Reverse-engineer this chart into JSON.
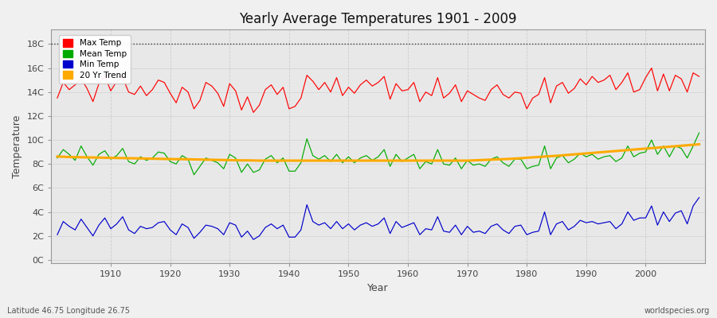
{
  "title": "Yearly Average Temperatures 1901 - 2009",
  "xlabel": "Year",
  "ylabel": "Temperature",
  "subtitle_left": "Latitude 46.75 Longitude 26.75",
  "subtitle_right": "worldspecies.org",
  "years_start": 1901,
  "years_end": 2009,
  "yticks": [
    0,
    2,
    4,
    6,
    8,
    10,
    12,
    14,
    16,
    18
  ],
  "ytick_labels": [
    "0C",
    "2C",
    "4C",
    "6C",
    "8C",
    "10C",
    "12C",
    "14C",
    "16C",
    "18C"
  ],
  "ylim": [
    -0.3,
    19.2
  ],
  "xlim_left": 1900,
  "xlim_right": 2010,
  "color_max": "#ff0000",
  "color_mean": "#00aa00",
  "color_min": "#0000cc",
  "color_trend": "#ffaa00",
  "fig_bg": "#f0f0f0",
  "plot_bg": "#e8e8e8",
  "grid_color": "#cccccc",
  "legend_labels": [
    "Max Temp",
    "Mean Temp",
    "Min Temp",
    "20 Yr Trend"
  ],
  "max_temps": [
    13.5,
    14.8,
    14.2,
    14.6,
    15.1,
    14.3,
    13.2,
    14.7,
    15.3,
    14.1,
    14.9,
    15.2,
    14.0,
    13.8,
    14.5,
    13.7,
    14.2,
    15.0,
    14.8,
    13.9,
    13.1,
    14.4,
    14.0,
    12.6,
    13.3,
    14.8,
    14.5,
    13.9,
    12.8,
    14.7,
    14.1,
    12.5,
    13.6,
    12.3,
    12.9,
    14.2,
    14.6,
    13.8,
    14.4,
    12.6,
    12.8,
    13.5,
    15.4,
    14.9,
    14.2,
    14.8,
    14.0,
    15.2,
    13.7,
    14.4,
    13.9,
    14.6,
    15.0,
    14.5,
    14.8,
    15.3,
    13.4,
    14.7,
    14.1,
    14.2,
    14.8,
    13.2,
    14.0,
    13.7,
    15.2,
    13.5,
    13.9,
    14.6,
    13.2,
    14.1,
    13.8,
    13.5,
    13.3,
    14.2,
    14.6,
    13.8,
    13.5,
    14.0,
    13.9,
    12.6,
    13.5,
    13.8,
    15.2,
    13.1,
    14.5,
    14.8,
    13.9,
    14.3,
    15.1,
    14.6,
    15.3,
    14.8,
    15.0,
    15.4,
    14.2,
    14.8,
    15.6,
    14.0,
    14.2,
    15.2,
    16.0,
    14.1,
    15.5,
    14.1,
    15.4,
    15.1,
    14.0,
    15.6,
    15.3
  ],
  "mean_temps": [
    8.5,
    9.2,
    8.8,
    8.3,
    9.5,
    8.6,
    7.9,
    8.8,
    9.1,
    8.4,
    8.7,
    9.3,
    8.2,
    8.0,
    8.6,
    8.3,
    8.5,
    9.0,
    8.9,
    8.2,
    8.0,
    8.7,
    8.4,
    7.1,
    7.8,
    8.5,
    8.3,
    8.1,
    7.6,
    8.8,
    8.5,
    7.3,
    8.0,
    7.3,
    7.5,
    8.4,
    8.7,
    8.1,
    8.5,
    7.4,
    7.4,
    8.1,
    10.1,
    8.7,
    8.4,
    8.7,
    8.2,
    8.8,
    8.1,
    8.6,
    8.1,
    8.5,
    8.7,
    8.3,
    8.6,
    9.2,
    7.8,
    8.8,
    8.2,
    8.5,
    8.8,
    7.6,
    8.2,
    8.0,
    9.2,
    8.0,
    7.9,
    8.5,
    7.6,
    8.3,
    7.9,
    8.0,
    7.8,
    8.4,
    8.6,
    8.1,
    7.8,
    8.4,
    8.4,
    7.6,
    7.8,
    7.9,
    9.5,
    7.6,
    8.5,
    8.7,
    8.1,
    8.4,
    8.9,
    8.6,
    8.8,
    8.4,
    8.6,
    8.7,
    8.2,
    8.5,
    9.5,
    8.6,
    8.9,
    9.0,
    10.0,
    8.8,
    9.5,
    8.6,
    9.5,
    9.3,
    8.5,
    9.5,
    10.6
  ],
  "min_temps": [
    2.1,
    3.2,
    2.8,
    2.5,
    3.4,
    2.7,
    2.0,
    2.9,
    3.5,
    2.6,
    3.0,
    3.6,
    2.5,
    2.2,
    2.8,
    2.6,
    2.7,
    3.1,
    3.2,
    2.5,
    2.1,
    3.0,
    2.7,
    1.8,
    2.3,
    2.9,
    2.8,
    2.6,
    2.1,
    3.1,
    2.9,
    1.9,
    2.4,
    1.7,
    2.0,
    2.7,
    3.0,
    2.6,
    2.9,
    1.9,
    1.9,
    2.5,
    4.6,
    3.2,
    2.9,
    3.1,
    2.6,
    3.2,
    2.6,
    3.0,
    2.5,
    2.9,
    3.1,
    2.8,
    3.0,
    3.5,
    2.2,
    3.2,
    2.7,
    2.9,
    3.1,
    2.1,
    2.6,
    2.5,
    3.6,
    2.4,
    2.3,
    2.9,
    2.1,
    2.8,
    2.3,
    2.4,
    2.2,
    2.8,
    3.0,
    2.5,
    2.2,
    2.8,
    2.9,
    2.1,
    2.3,
    2.4,
    4.0,
    2.1,
    3.0,
    3.2,
    2.5,
    2.8,
    3.3,
    3.1,
    3.2,
    3.0,
    3.1,
    3.2,
    2.6,
    3.0,
    4.0,
    3.3,
    3.5,
    3.5,
    4.5,
    2.9,
    4.0,
    3.2,
    3.9,
    4.1,
    3.0,
    4.5,
    5.2
  ],
  "trend_mean": [
    8.62,
    8.6,
    8.58,
    8.57,
    8.56,
    8.55,
    8.54,
    8.53,
    8.52,
    8.51,
    8.5,
    8.49,
    8.48,
    8.47,
    8.46,
    8.45,
    8.44,
    8.43,
    8.42,
    8.41,
    8.4,
    8.4,
    8.39,
    8.38,
    8.37,
    8.36,
    8.35,
    8.34,
    8.33,
    8.32,
    8.31,
    8.3,
    8.3,
    8.29,
    8.28,
    8.28,
    8.28,
    8.28,
    8.28,
    8.28,
    8.28,
    8.28,
    8.28,
    8.28,
    8.28,
    8.28,
    8.28,
    8.28,
    8.28,
    8.28,
    8.28,
    8.28,
    8.28,
    8.28,
    8.28,
    8.28,
    8.28,
    8.28,
    8.28,
    8.28,
    8.28,
    8.28,
    8.28,
    8.28,
    8.28,
    8.28,
    8.28,
    8.28,
    8.28,
    8.28,
    8.3,
    8.32,
    8.34,
    8.36,
    8.38,
    8.4,
    8.42,
    8.45,
    8.48,
    8.52,
    8.55,
    8.58,
    8.62,
    8.65,
    8.68,
    8.72,
    8.76,
    8.8,
    8.84,
    8.88,
    8.92,
    8.96,
    9.0,
    9.04,
    9.08,
    9.12,
    9.16,
    9.2,
    9.24,
    9.28,
    9.32,
    9.36,
    9.4,
    9.44,
    9.48,
    9.52,
    9.56,
    9.6,
    9.64
  ]
}
